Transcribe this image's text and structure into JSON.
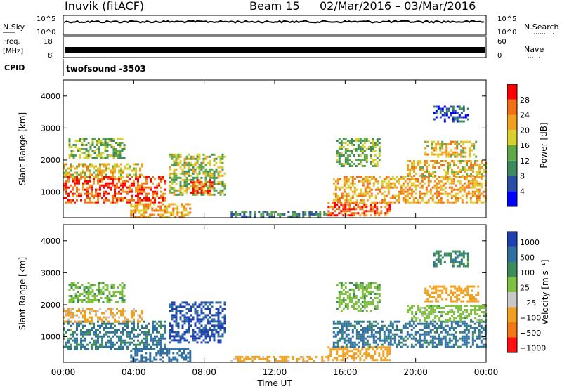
{
  "header": {
    "station": "Inuvik (fitACF)",
    "beam": "Beam 15",
    "dates": "02/Mar/2016 – 03/Mar/2016"
  },
  "nsky_panel": {
    "left_label": "N.Sky",
    "left_ticks": [
      "10^5",
      "10^0"
    ],
    "right_label": "N.Search",
    "right_ticks": [
      "10^5",
      "10^0"
    ]
  },
  "freq_panel": {
    "left_label_1": "Freq.",
    "left_label_2": "[MHz]",
    "left_ticks": [
      "18",
      "8"
    ],
    "right_label": "Nave",
    "right_ticks": [
      "60",
      "0"
    ]
  },
  "cpid_panel": {
    "label": "CPID",
    "program": "twofsound -3503"
  },
  "chart_data": [
    {
      "type": "heatmap",
      "name": "power",
      "ylabel": "Slant Range [km]",
      "yticks": [
        1000,
        2000,
        3000,
        4000
      ],
      "ylim": [
        200,
        4500
      ],
      "xticks": [
        "00:00",
        "04:00",
        "08:00",
        "12:00",
        "16:00",
        "20:00",
        "00:00"
      ],
      "colorbar": {
        "label": "Power [dB]",
        "ticks": [
          4,
          8,
          12,
          16,
          20,
          24,
          28
        ],
        "colors": [
          "#0000ff",
          "#2a4fa8",
          "#3e8a5c",
          "#5fa84a",
          "#d9d030",
          "#f0a020",
          "#f07018",
          "#ff0000"
        ]
      },
      "regions": [
        {
          "t": [
            0.0,
            5.8
          ],
          "r": [
            650,
            1500
          ],
          "v": 27
        },
        {
          "t": [
            0.0,
            4.5
          ],
          "r": [
            1500,
            1900
          ],
          "v": 20
        },
        {
          "t": [
            0.3,
            3.5
          ],
          "r": [
            2100,
            2700
          ],
          "v": 14
        },
        {
          "t": [
            3.8,
            7.2
          ],
          "r": [
            250,
            650
          ],
          "v": 22
        },
        {
          "t": [
            6.0,
            9.2
          ],
          "r": [
            900,
            2200
          ],
          "v": 16
        },
        {
          "t": [
            7.2,
            8.5
          ],
          "r": [
            1000,
            1400
          ],
          "v": 28
        },
        {
          "t": [
            9.5,
            15.0
          ],
          "r": [
            220,
            400
          ],
          "v": 10
        },
        {
          "t": [
            15.0,
            18.5
          ],
          "r": [
            300,
            700
          ],
          "v": 28
        },
        {
          "t": [
            15.3,
            24.0
          ],
          "r": [
            700,
            1500
          ],
          "v": 22
        },
        {
          "t": [
            15.5,
            18.0
          ],
          "r": [
            1800,
            2700
          ],
          "v": 14
        },
        {
          "t": [
            19.5,
            24.0
          ],
          "r": [
            1500,
            2000
          ],
          "v": 20
        },
        {
          "t": [
            20.5,
            23.5
          ],
          "r": [
            2100,
            2600
          ],
          "v": 20
        },
        {
          "t": [
            21.0,
            23.0
          ],
          "r": [
            3200,
            3700
          ],
          "v": 6
        }
      ]
    },
    {
      "type": "heatmap",
      "name": "velocity",
      "ylabel": "Slant Range [km]",
      "yticks": [
        1000,
        2000,
        3000,
        4000
      ],
      "ylim": [
        200,
        4500
      ],
      "xlabel": "Time UT",
      "xticks": [
        "00:00",
        "04:00",
        "08:00",
        "12:00",
        "16:00",
        "20:00",
        "00:00"
      ],
      "colorbar": {
        "label": "Velocity [m s⁻¹]",
        "ticks": [
          "1000",
          "500",
          "100",
          "25",
          "−25",
          "−100",
          "−500",
          "−1000"
        ],
        "colors": [
          "#2040b0",
          "#3070a0",
          "#3d8a5a",
          "#80c040",
          "#c8c8c8",
          "#f0a020",
          "#f07818",
          "#ff1010"
        ]
      },
      "regions": [
        {
          "t": [
            0.0,
            5.8
          ],
          "r": [
            600,
            1500
          ],
          "v": 120
        },
        {
          "t": [
            0.0,
            4.5
          ],
          "r": [
            1500,
            1900
          ],
          "v": -150
        },
        {
          "t": [
            0.3,
            3.5
          ],
          "r": [
            2100,
            2700
          ],
          "v": 10
        },
        {
          "t": [
            3.8,
            7.2
          ],
          "r": [
            250,
            650
          ],
          "v": 300
        },
        {
          "t": [
            6.0,
            9.2
          ],
          "r": [
            800,
            2100
          ],
          "v": 600
        },
        {
          "t": [
            9.5,
            15.0
          ],
          "r": [
            220,
            400
          ],
          "v": -200
        },
        {
          "t": [
            15.0,
            18.5
          ],
          "r": [
            300,
            700
          ],
          "v": -300
        },
        {
          "t": [
            15.3,
            24.0
          ],
          "r": [
            700,
            1500
          ],
          "v": 150
        },
        {
          "t": [
            15.5,
            18.0
          ],
          "r": [
            1800,
            2700
          ],
          "v": 5
        },
        {
          "t": [
            19.5,
            24.0
          ],
          "r": [
            1500,
            2000
          ],
          "v": 0
        },
        {
          "t": [
            20.5,
            23.5
          ],
          "r": [
            2100,
            2600
          ],
          "v": -300
        },
        {
          "t": [
            21.0,
            23.0
          ],
          "r": [
            3200,
            3700
          ],
          "v": 80
        }
      ]
    }
  ]
}
